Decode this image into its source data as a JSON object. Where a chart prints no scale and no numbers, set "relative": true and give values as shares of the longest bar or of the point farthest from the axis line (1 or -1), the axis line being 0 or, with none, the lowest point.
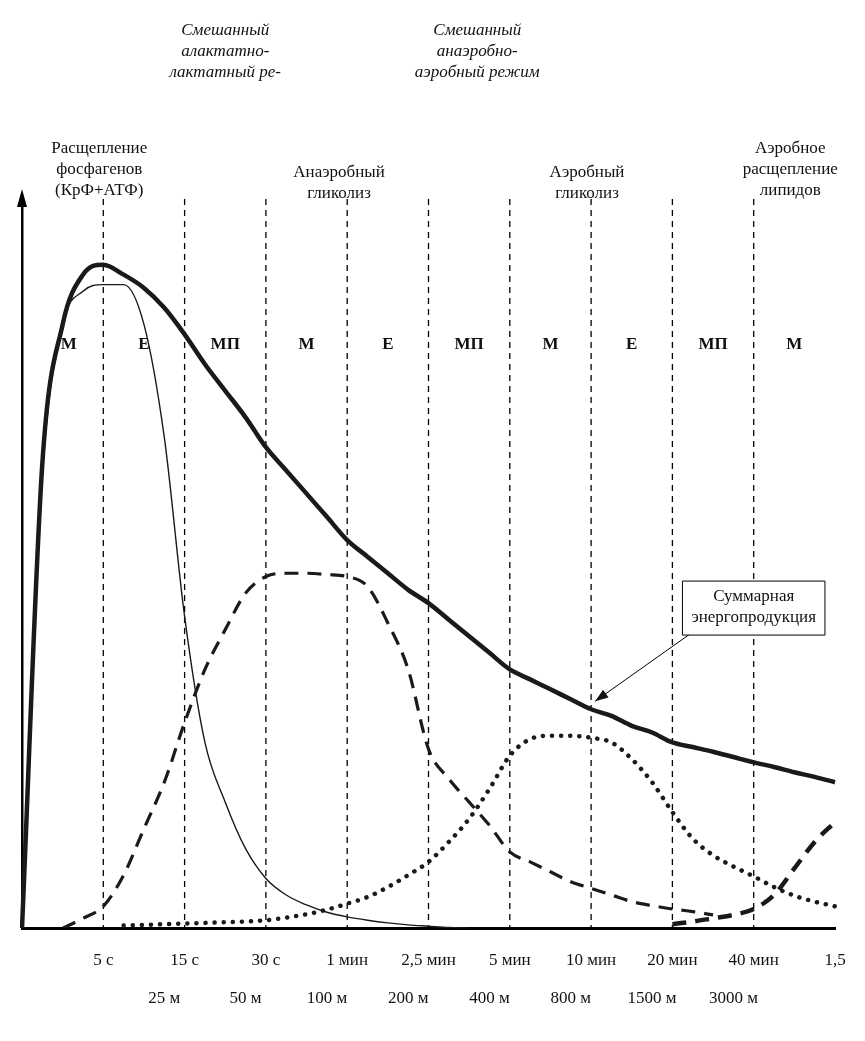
{
  "chart_data": {
    "type": "line",
    "relative": true,
    "legend": false,
    "grid": false,
    "marker": "none",
    "categories": [
      null,
      null,
      null,
      null,
      "5 с",
      null,
      null,
      "25 м",
      "15 с",
      null,
      null,
      "50 м",
      "30 с",
      null,
      null,
      "100 м",
      "1 мин",
      null,
      null,
      "200 м",
      "2,5 мин",
      null,
      null,
      "400 м",
      "5 мин",
      null,
      null,
      "800 м",
      "10 мин",
      null,
      null,
      "1500 м",
      "20 мин",
      null,
      null,
      "3000 м",
      "40 мин",
      null,
      null,
      null,
      "1,5"
    ],
    "series": [
      {
        "color": "#1a1a1a",
        "line_style": "solid",
        "values": [
          0,
          0.7,
          0.91,
          0.985,
          1.0,
          0.985,
          0.965,
          0.935,
          0.895,
          0.85,
          0.81,
          0.77,
          0.725,
          0.69,
          0.655,
          0.62,
          0.585,
          0.56,
          0.535,
          0.51,
          0.49,
          0.465,
          0.44,
          0.415,
          0.39,
          0.375,
          0.36,
          0.345,
          0.33,
          0.32,
          0.305,
          0.295,
          0.28,
          0.273,
          0.266,
          0.258,
          0.25,
          0.243,
          0.235,
          0.228,
          0.22
        ]
      },
      {
        "color": "#1a1a1a",
        "line_style": "solid",
        "values": [
          0,
          0.68,
          0.91,
          0.96,
          0.97,
          0.97,
          0.91,
          0.74,
          0.47,
          0.28,
          0.19,
          0.12,
          0.075,
          0.05,
          0.035,
          0.024,
          0.017,
          0.012,
          0.008,
          0.005,
          0.003,
          0.001,
          0,
          null,
          null,
          null,
          null,
          null,
          null,
          null,
          null,
          null,
          null,
          null,
          null,
          null,
          null,
          null,
          null,
          null,
          null
        ]
      },
      {
        "color": "#1a1a1a",
        "line_style": "dashed",
        "values": [
          null,
          null,
          0,
          0.015,
          0.033,
          0.08,
          0.15,
          0.22,
          0.31,
          0.39,
          0.45,
          0.505,
          0.53,
          0.535,
          0.535,
          0.533,
          0.53,
          0.515,
          0.46,
          0.39,
          0.27,
          0.225,
          0.19,
          0.155,
          0.115,
          0.1,
          0.085,
          0.07,
          0.06,
          0.05,
          0.04,
          0.034,
          0.029,
          0.025,
          0.02,
          null,
          null,
          null,
          null,
          null,
          null
        ]
      },
      {
        "color": "#1a1a1a",
        "line_style": "dotted",
        "values": [
          null,
          null,
          null,
          null,
          null,
          0.004,
          0.005,
          0.006,
          0.007,
          0.008,
          0.009,
          0.01,
          0.012,
          0.016,
          0.021,
          0.028,
          0.037,
          0.047,
          0.062,
          0.08,
          0.1,
          0.13,
          0.165,
          0.21,
          0.26,
          0.285,
          0.29,
          0.29,
          0.287,
          0.28,
          0.255,
          0.22,
          0.175,
          0.135,
          0.11,
          0.093,
          0.078,
          0.062,
          0.049,
          0.04,
          0.033
        ]
      },
      {
        "color": "#1a1a1a",
        "line_style": "dashed",
        "values": [
          null,
          null,
          null,
          null,
          null,
          null,
          null,
          null,
          null,
          null,
          null,
          null,
          null,
          null,
          null,
          null,
          null,
          null,
          null,
          null,
          null,
          null,
          null,
          null,
          null,
          null,
          null,
          null,
          null,
          null,
          null,
          null,
          0.006,
          0.01,
          0.015,
          0.02,
          0.029,
          0.05,
          0.09,
          0.13,
          0.16
        ]
      }
    ],
    "ref_lines": [
      {
        "axis": "x",
        "value": "5 с",
        "line_style": "dashed",
        "color": "#000000"
      },
      {
        "axis": "x",
        "value": "15 с",
        "line_style": "dashed",
        "color": "#000000"
      },
      {
        "axis": "x",
        "value": "30 с",
        "line_style": "dashed",
        "color": "#000000"
      },
      {
        "axis": "x",
        "value": "1 мин",
        "line_style": "dashed",
        "color": "#000000"
      },
      {
        "axis": "x",
        "value": "2,5 мин",
        "line_style": "dashed",
        "color": "#000000"
      },
      {
        "axis": "x",
        "value": "5 мин",
        "line_style": "dashed",
        "color": "#000000"
      },
      {
        "axis": "x",
        "value": "10 мин",
        "line_style": "dashed",
        "color": "#000000"
      },
      {
        "axis": "x",
        "value": "20 мин",
        "line_style": "dashed",
        "color": "#000000"
      },
      {
        "axis": "x",
        "value": "40 мин",
        "line_style": "dashed",
        "color": "#000000"
      }
    ],
    "annotations": [
      "Смешанный алактатно-лактатный ре-",
      "Смешанный анаэробно-аэробный режим",
      "Расщепление фосфагенов (КрФ+АТФ)",
      "Анаэробный гликолиз",
      "Аэробный гликолиз",
      "Аэробное расщепление липидов",
      "Суммарная энергопродукция",
      "М",
      "Е",
      "МП",
      "М",
      "Е",
      "МП",
      "М",
      "Е",
      "МП",
      "М"
    ]
  }
}
